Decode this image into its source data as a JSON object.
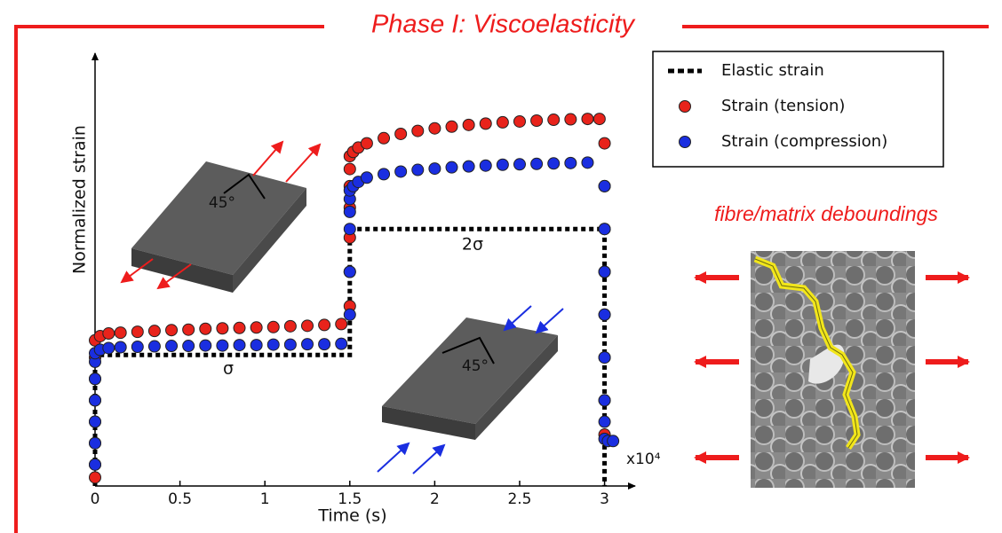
{
  "chart_data": {
    "type": "scatter",
    "title": "Phase I: Viscoelasticity",
    "x_label": "Time (s)",
    "y_label": "Normalized strain",
    "x_multiplier": "x10⁴",
    "annotations": {
      "stress_1": "σ",
      "stress_2": "2σ",
      "angle_tension": "45°",
      "angle_compression": "45°",
      "micrograph": "fibre/matrix deboundings"
    },
    "xlim": [
      0,
      3.18
    ],
    "xticks": [
      0,
      0.5,
      1,
      1.5,
      2,
      2.5,
      3
    ],
    "ylim": [
      0,
      1
    ],
    "legend": "upper right",
    "series": [
      {
        "name": "Elastic strain",
        "style": "dashed-line",
        "color": "#000000",
        "x": [
          0,
          0,
          1.5,
          1.5,
          3,
          3
        ],
        "values": [
          0,
          0.306,
          0.306,
          0.6,
          0.6,
          0
        ]
      },
      {
        "name": "Strain (tension)",
        "style": "marker",
        "color": "#e8231b",
        "x": [
          0,
          0,
          0,
          0,
          0,
          0,
          0,
          0,
          0.03,
          0.08,
          0.15,
          0.25,
          0.35,
          0.45,
          0.55,
          0.65,
          0.75,
          0.85,
          0.95,
          1.05,
          1.15,
          1.25,
          1.35,
          1.45,
          1.5,
          1.5,
          1.5,
          1.5,
          1.5,
          1.5,
          1.5,
          1.52,
          1.55,
          1.6,
          1.7,
          1.8,
          1.9,
          2.0,
          2.1,
          2.2,
          2.3,
          2.4,
          2.5,
          2.6,
          2.7,
          2.8,
          2.9,
          2.97,
          3.0,
          3.0,
          3.0,
          3.0,
          3.0,
          3.0,
          3.0,
          3.0
        ],
        "values": [
          0.02,
          0.05,
          0.1,
          0.15,
          0.2,
          0.25,
          0.3,
          0.34,
          0.35,
          0.356,
          0.358,
          0.36,
          0.362,
          0.364,
          0.365,
          0.367,
          0.368,
          0.369,
          0.37,
          0.371,
          0.373,
          0.374,
          0.376,
          0.378,
          0.42,
          0.5,
          0.58,
          0.65,
          0.7,
          0.74,
          0.77,
          0.78,
          0.79,
          0.8,
          0.812,
          0.822,
          0.829,
          0.835,
          0.839,
          0.843,
          0.846,
          0.849,
          0.851,
          0.853,
          0.855,
          0.856,
          0.857,
          0.857,
          0.8,
          0.7,
          0.6,
          0.5,
          0.4,
          0.3,
          0.2,
          0.12
        ]
      },
      {
        "name": "Strain (compression)",
        "style": "marker",
        "color": "#1a2ee0",
        "x": [
          0,
          0,
          0,
          0,
          0,
          0,
          0,
          0.03,
          0.08,
          0.15,
          0.25,
          0.35,
          0.45,
          0.55,
          0.65,
          0.75,
          0.85,
          0.95,
          1.05,
          1.15,
          1.25,
          1.35,
          1.45,
          1.5,
          1.5,
          1.5,
          1.5,
          1.5,
          1.5,
          1.52,
          1.55,
          1.6,
          1.7,
          1.8,
          1.9,
          2.0,
          2.1,
          2.2,
          2.3,
          2.4,
          2.5,
          2.6,
          2.7,
          2.8,
          2.9,
          3.0,
          3.0,
          3.0,
          3.0,
          3.0,
          3.0,
          3.0,
          3.0,
          3.02,
          3.05
        ],
        "values": [
          0.05,
          0.1,
          0.15,
          0.2,
          0.25,
          0.29,
          0.31,
          0.318,
          0.322,
          0.324,
          0.325,
          0.326,
          0.327,
          0.327,
          0.328,
          0.328,
          0.329,
          0.329,
          0.33,
          0.33,
          0.331,
          0.331,
          0.332,
          0.4,
          0.5,
          0.6,
          0.64,
          0.67,
          0.69,
          0.7,
          0.71,
          0.72,
          0.728,
          0.734,
          0.738,
          0.741,
          0.744,
          0.746,
          0.748,
          0.75,
          0.751,
          0.752,
          0.753,
          0.754,
          0.755,
          0.7,
          0.6,
          0.5,
          0.4,
          0.3,
          0.2,
          0.15,
          0.11,
          0.105,
          0.105
        ]
      }
    ]
  }
}
